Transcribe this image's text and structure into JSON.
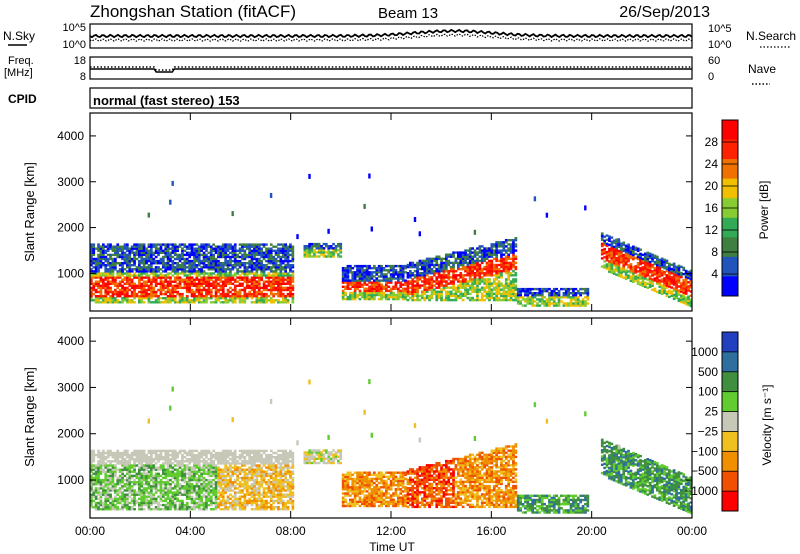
{
  "header": {
    "title": "Zhongshan Station (fitACF)",
    "beam": "Beam 13",
    "date": "26/Sep/2013"
  },
  "noise_panel": {
    "left_label": "N.Sky",
    "right_label": "N.Search",
    "left_ticks": [
      "10^5",
      "10^0"
    ],
    "right_ticks": [
      "10^5",
      "10^0"
    ]
  },
  "freq_panel": {
    "left_label_line1": "Freq.",
    "left_label_line2": "[MHz]",
    "right_label": "Nave",
    "left_ticks": [
      "18",
      "8"
    ],
    "right_ticks": [
      "60",
      "0"
    ]
  },
  "cpid_panel": {
    "label": "CPID",
    "mode": "normal (fast stereo) 153"
  },
  "colors": {
    "power": [
      "#0000ff",
      "#2255bb",
      "#3f7f3f",
      "#33aa55",
      "#88cc33",
      "#f0c000",
      "#f07000",
      "#ff2200",
      "#ff0000"
    ],
    "velocity": [
      "#ff0000",
      "#f05000",
      "#f09000",
      "#f0c020",
      "#c8c8b8",
      "#60cc30",
      "#3f8f3f",
      "#2f6f9f",
      "#2040c0"
    ]
  },
  "chart_data": [
    {
      "type": "heatmap",
      "title": "",
      "ylabel": "Slant Range [km]",
      "ylim": [
        180,
        4500
      ],
      "yticks": [
        "1000",
        "2000",
        "3000",
        "4000"
      ],
      "colorbar_label": "Power [dB]",
      "colorbar_ticks": [
        "4",
        "8",
        "12",
        "16",
        "20",
        "24",
        "28"
      ],
      "colorbar_range": [
        0,
        32
      ],
      "grid": false
    },
    {
      "type": "heatmap",
      "title": "",
      "xlabel": "Time UT",
      "ylabel": "Slant Range [km]",
      "ylim": [
        180,
        4500
      ],
      "xlim": [
        0,
        24
      ],
      "xticks": [
        "00:00",
        "04:00",
        "08:00",
        "12:00",
        "16:00",
        "20:00",
        "00:00"
      ],
      "yticks": [
        "1000",
        "2000",
        "3000",
        "4000"
      ],
      "colorbar_label": "Velocity [m s⁻¹]",
      "colorbar_ticks": [
        "1000",
        "500",
        "100",
        "25",
        "−25",
        "−100",
        "−500",
        "−1000"
      ],
      "grid": false
    }
  ]
}
